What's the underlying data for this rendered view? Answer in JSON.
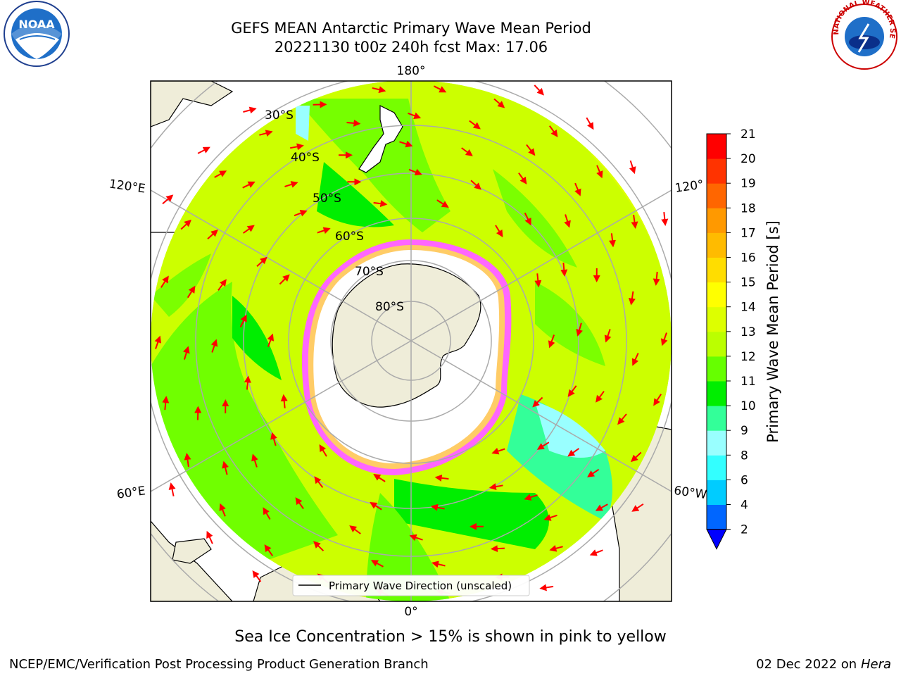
{
  "header": {
    "title_line1": "GEFS MEAN Antarctic Primary Wave Mean Period",
    "title_line2": "20221130 t00z 240h fcst   Max: 17.06"
  },
  "logos": {
    "left": "noaa-logo",
    "left_text": "NOAA",
    "right": "nws-logo",
    "right_text": "NATIONAL WEATHER SERVICE"
  },
  "map": {
    "projection": "south polar stereographic",
    "longitude_labels": {
      "top": "180°",
      "bottom": "0°",
      "upper_left": "120°E",
      "upper_right": "120°",
      "lower_left": "60°E",
      "lower_right": "60°W"
    },
    "latitude_labels": [
      "30°S",
      "40°S",
      "50°S",
      "60°S",
      "70°S",
      "80°S"
    ],
    "legend_label": "Primary Wave Direction (unscaled)",
    "arrow_color": "#ff0000",
    "land_color": "#efedd9",
    "ice_colors": [
      "#ff33ff",
      "#ff99cc",
      "#ffcc66",
      "#ffffff"
    ]
  },
  "colorbar": {
    "label": "Primary Wave Mean Period [s]",
    "ticks": [
      "2",
      "4",
      "6",
      "8",
      "9",
      "10",
      "11",
      "12",
      "13",
      "14",
      "15",
      "16",
      "17",
      "18",
      "19",
      "20",
      "21"
    ],
    "colors": [
      "#0066ff",
      "#00ccff",
      "#33ffff",
      "#99ffff",
      "#33ff99",
      "#00ee00",
      "#66ff00",
      "#bbff00",
      "#ddff00",
      "#ffff00",
      "#ffdd00",
      "#ffbb00",
      "#ff9900",
      "#ff6600",
      "#ff3300",
      "#ff0000"
    ],
    "extend_color": "#0000ff"
  },
  "footer": {
    "note": "Sea Ice Concentration > 15% is shown in pink to yellow",
    "credit": "NCEP/EMC/Verification Post Processing Product Generation Branch",
    "date": "02 Dec 2022 on",
    "machine": "Hera"
  }
}
